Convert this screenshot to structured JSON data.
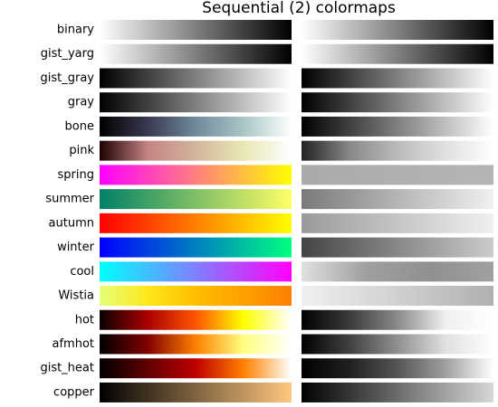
{
  "title": "Sequential (2) colormaps",
  "colormaps": [
    {
      "name": "binary",
      "colors": [
        "#ffffff",
        "#000000"
      ],
      "gray": [
        "#ffffff",
        "#000000"
      ]
    },
    {
      "name": "gist_yarg",
      "colors": [
        "#ffffff",
        "#000000"
      ],
      "gray": [
        "#ffffff",
        "#000000"
      ]
    },
    {
      "name": "gist_gray",
      "colors": [
        "#000000",
        "#ffffff"
      ],
      "gray": [
        "#000000",
        "#ffffff"
      ]
    },
    {
      "name": "gray",
      "colors": [
        "#000000",
        "#ffffff"
      ],
      "gray": [
        "#000000",
        "#ffffff"
      ]
    },
    {
      "name": "bone",
      "colors": [
        "#000000",
        "#393950",
        "#6f8a9a",
        "#a8c6c6",
        "#ffffff"
      ],
      "gray": [
        "#000000",
        "#ffffff"
      ]
    },
    {
      "name": "pink",
      "colors": [
        "#1e0000",
        "#c48484",
        "#d2b49c",
        "#e8e8b4",
        "#ffffff"
      ],
      "gray": [
        "#222222",
        "#888888",
        "#bbbbbb",
        "#e0e0e0",
        "#ffffff"
      ]
    },
    {
      "name": "spring",
      "colors": [
        "#ff00ff",
        "#ffff00"
      ],
      "gray": [
        "#aaaaaa",
        "#b5b5b5"
      ]
    },
    {
      "name": "summer",
      "colors": [
        "#008066",
        "#ffff66"
      ],
      "gray": [
        "#7a7a7a",
        "#f0f0f0"
      ]
    },
    {
      "name": "autumn",
      "colors": [
        "#ff0000",
        "#ffff00"
      ],
      "gray": [
        "#9a9a9a",
        "#f0f0f0"
      ]
    },
    {
      "name": "winter",
      "colors": [
        "#0000ff",
        "#00ff80"
      ],
      "gray": [
        "#444444",
        "#cccccc"
      ]
    },
    {
      "name": "cool",
      "colors": [
        "#00ffff",
        "#ff00ff"
      ],
      "gray": [
        "#e0e0e0",
        "#a0a0a0",
        "#909090",
        "#a0a0a0"
      ]
    },
    {
      "name": "Wistia",
      "colors": [
        "#e4ff7a",
        "#ffe81a",
        "#ffbd00",
        "#ffa000",
        "#fc7f00"
      ],
      "gray": [
        "#f0f0f0",
        "#b0b0b0"
      ]
    },
    {
      "name": "hot",
      "colors": [
        "#0b0000",
        "#aa0000",
        "#ff5500",
        "#ffff00",
        "#ffffff"
      ],
      "gray": [
        "#000000",
        "#3a3a3a",
        "#8a8a8a",
        "#f0f0f0",
        "#ffffff"
      ]
    },
    {
      "name": "afmhot",
      "colors": [
        "#000000",
        "#800000",
        "#ff8000",
        "#ffff80",
        "#ffffff"
      ],
      "gray": [
        "#000000",
        "#404040",
        "#909090",
        "#e0e0e0",
        "#ffffff"
      ]
    },
    {
      "name": "gist_heat",
      "colors": [
        "#000000",
        "#600000",
        "#bf0000",
        "#ff8000",
        "#ffffff"
      ],
      "gray": [
        "#000000",
        "#202020",
        "#555555",
        "#a0a0a0",
        "#ffffff"
      ]
    },
    {
      "name": "copper",
      "colors": [
        "#000000",
        "#ffc77f"
      ],
      "gray": [
        "#000000",
        "#d8d8d8"
      ]
    }
  ]
}
